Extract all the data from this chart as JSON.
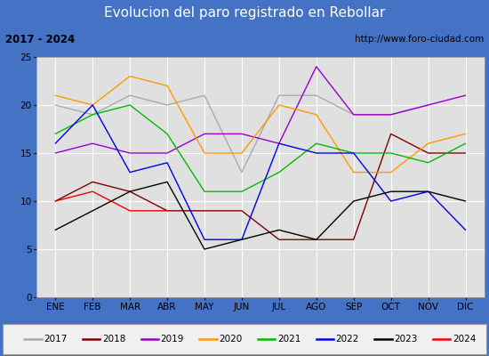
{
  "title": "Evolucion del paro registrado en Rebollar",
  "subtitle_left": "2017 - 2024",
  "subtitle_right": "http://www.foro-ciudad.com",
  "months": [
    "ENE",
    "FEB",
    "MAR",
    "ABR",
    "MAY",
    "JUN",
    "JUL",
    "AGO",
    "SEP",
    "OCT",
    "NOV",
    "DIC"
  ],
  "ylim": [
    0,
    25
  ],
  "yticks": [
    0,
    5,
    10,
    15,
    20,
    25
  ],
  "series": {
    "2017": {
      "color": "#aaaaaa",
      "data": [
        20,
        19,
        21,
        20,
        21,
        13,
        21,
        21,
        19,
        19,
        20,
        null
      ]
    },
    "2018": {
      "color": "#800000",
      "data": [
        10,
        12,
        11,
        9,
        9,
        9,
        6,
        6,
        6,
        17,
        15,
        15
      ]
    },
    "2019": {
      "color": "#9900cc",
      "data": [
        15,
        16,
        15,
        15,
        17,
        17,
        16,
        24,
        19,
        19,
        20,
        21
      ]
    },
    "2020": {
      "color": "#ff9900",
      "data": [
        21,
        20,
        23,
        22,
        15,
        15,
        20,
        19,
        13,
        13,
        16,
        17
      ]
    },
    "2021": {
      "color": "#00bb00",
      "data": [
        17,
        19,
        20,
        17,
        11,
        11,
        13,
        16,
        15,
        15,
        14,
        16
      ]
    },
    "2022": {
      "color": "#0000ee",
      "data": [
        16,
        20,
        13,
        14,
        6,
        6,
        16,
        15,
        15,
        10,
        11,
        7
      ]
    },
    "2023": {
      "color": "#000000",
      "data": [
        7,
        9,
        11,
        12,
        5,
        6,
        7,
        6,
        10,
        11,
        11,
        10
      ]
    },
    "2024": {
      "color": "#ee0000",
      "data": [
        10,
        11,
        9,
        9,
        null,
        null,
        null,
        null,
        null,
        null,
        null,
        null
      ]
    }
  },
  "title_bg_color": "#4472c4",
  "title_color": "#ffffff",
  "plot_bg_color": "#e0e0e0",
  "header_bg_color": "#d4d4d4",
  "legend_bg_color": "#f0f0f0",
  "grid_color": "#ffffff",
  "title_fontsize": 11,
  "axis_label_fontsize": 7.5,
  "legend_fontsize": 7.5
}
